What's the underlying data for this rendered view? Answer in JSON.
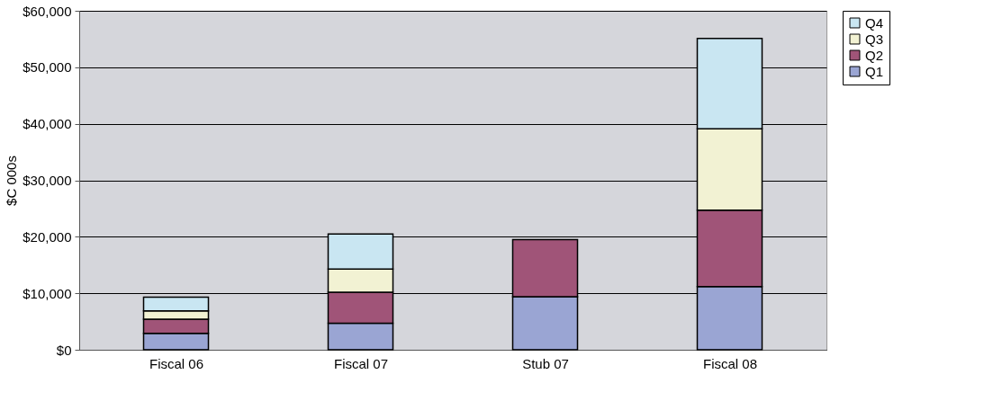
{
  "chart_data": {
    "type": "bar",
    "stacked": true,
    "ylabel": "$C 000s",
    "categories": [
      "Fiscal 06",
      "Fiscal 07",
      "Stub 07",
      "Fiscal 08"
    ],
    "series": [
      {
        "name": "Q1",
        "color": "#9aa5d3",
        "values": [
          2900,
          4700,
          9400,
          11200
        ]
      },
      {
        "name": "Q2",
        "color": "#a05478",
        "values": [
          2500,
          5500,
          10100,
          13500
        ]
      },
      {
        "name": "Q3",
        "color": "#f2f2d3",
        "values": [
          1500,
          4100,
          null,
          14400
        ]
      },
      {
        "name": "Q4",
        "color": "#c9e6f2",
        "values": [
          2400,
          6200,
          null,
          16000
        ]
      }
    ],
    "ylim": [
      0,
      60000
    ],
    "yticks": [
      {
        "value": 0,
        "label": "$0"
      },
      {
        "value": 10000,
        "label": "$10,000"
      },
      {
        "value": 20000,
        "label": "$20,000"
      },
      {
        "value": 30000,
        "label": "$30,000"
      },
      {
        "value": 40000,
        "label": "$40,000"
      },
      {
        "value": 50000,
        "label": "$50,000"
      },
      {
        "value": 60000,
        "label": "$60,000"
      }
    ],
    "grid": "y",
    "legend": "right"
  }
}
